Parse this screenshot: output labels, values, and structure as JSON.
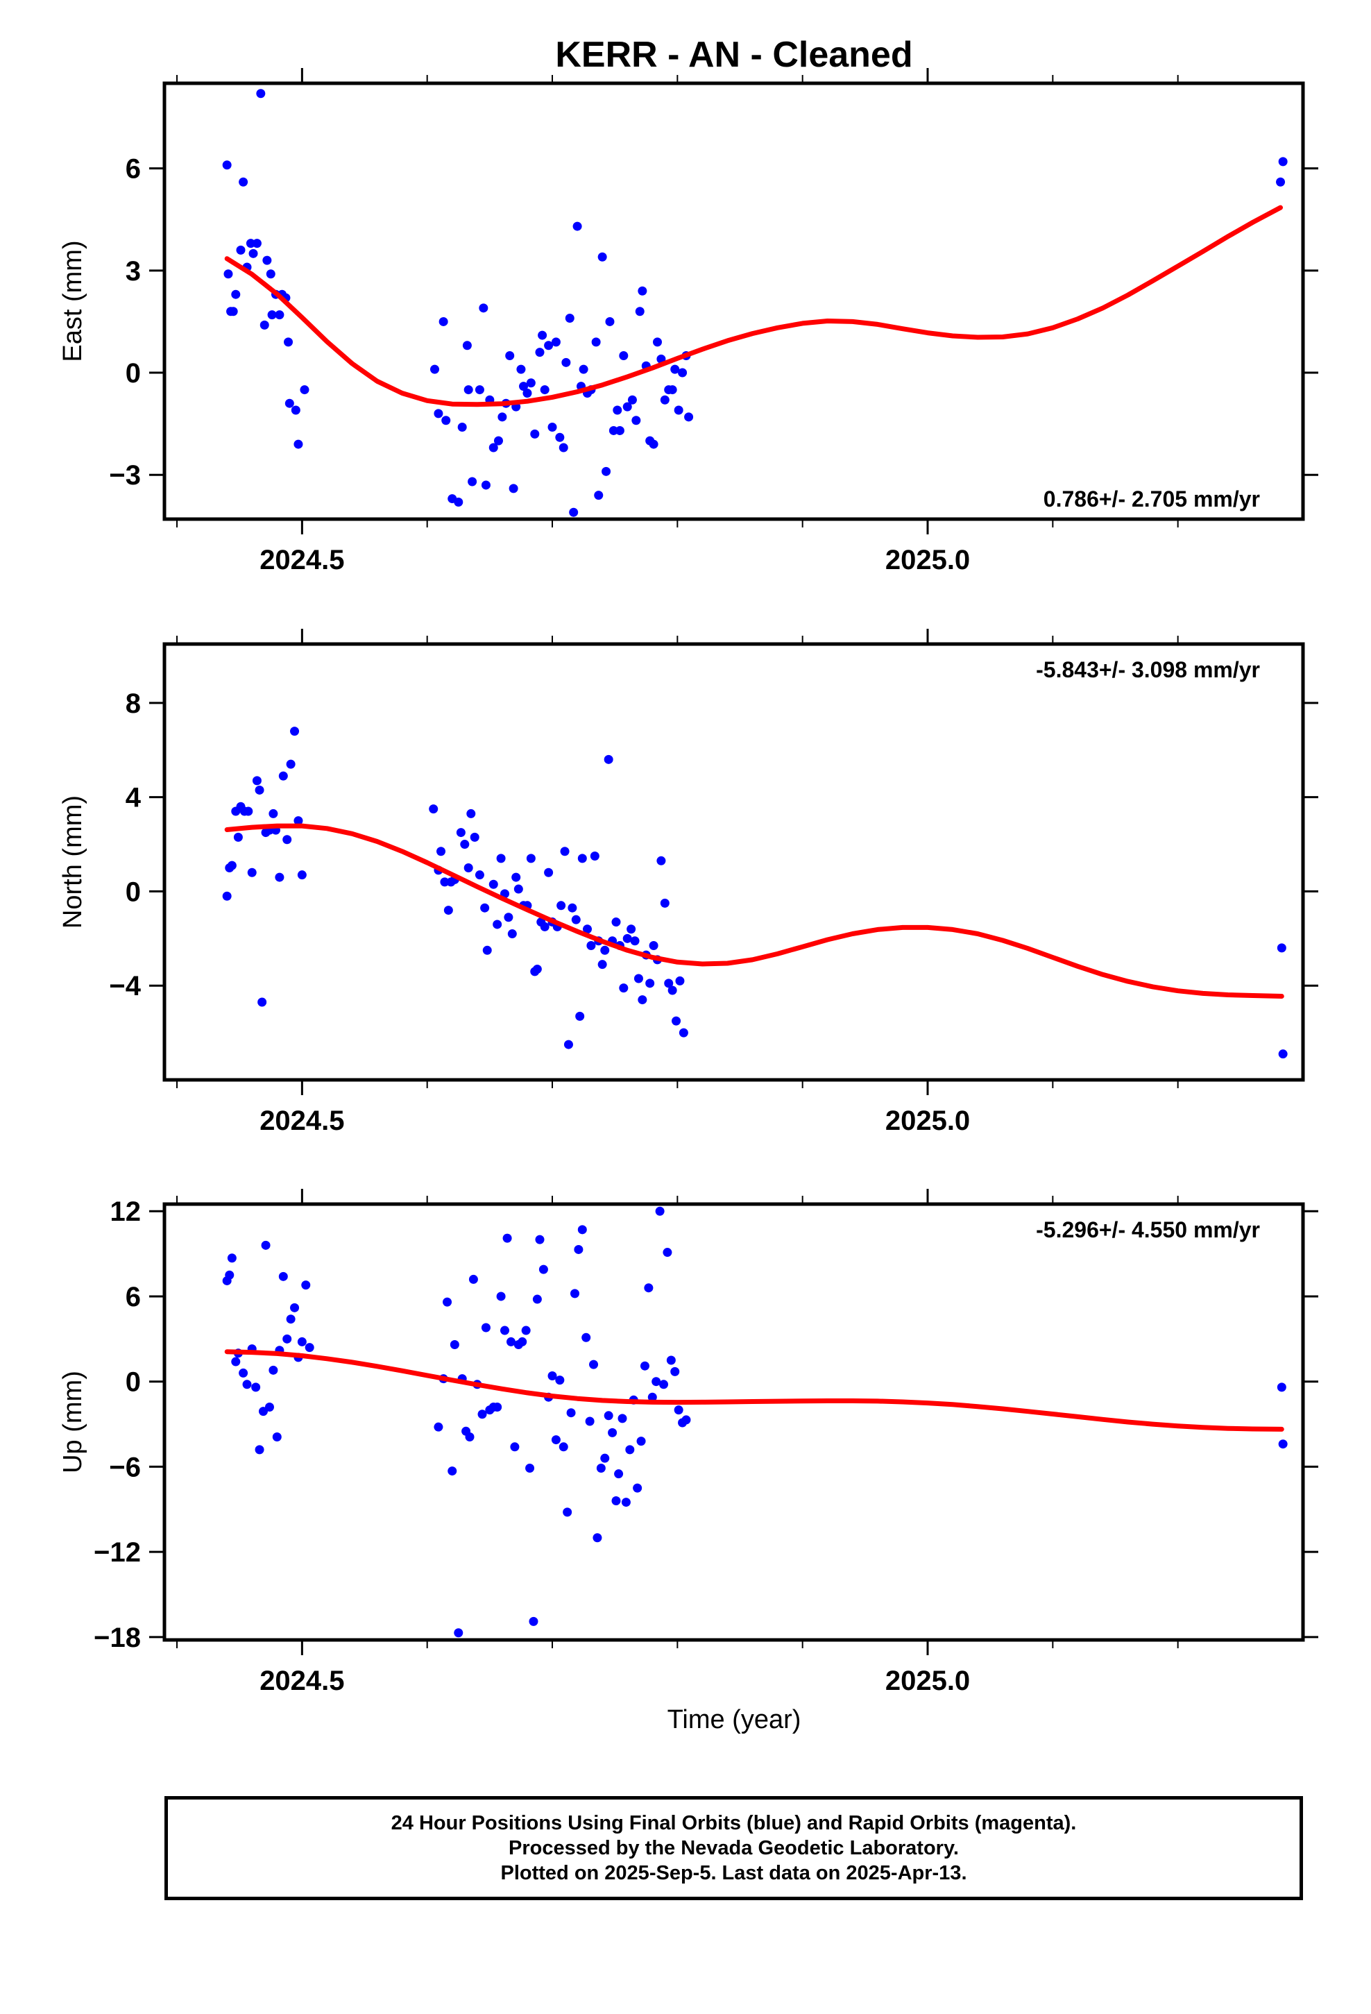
{
  "title": "KERR  - AN - Cleaned",
  "x_axis": {
    "label": "Time (year)"
  },
  "footer": {
    "lines": [
      "24 Hour Positions Using Final Orbits (blue) and Rapid Orbits (magenta).",
      "Processed by the Nevada Geodetic Laboratory.",
      "Plotted on 2025-Sep-5. Last data on 2025-Apr-13."
    ]
  },
  "colors": {
    "points": "#0000ff",
    "fit": "#ff0000",
    "frame": "#000000"
  },
  "chart_data": [
    {
      "type": "scatter",
      "component": "east",
      "ylabel": "East (mm)",
      "rate_label": "0.786+/- 2.705 mm/yr",
      "xlim": [
        2024.39,
        2025.3
      ],
      "ylim": [
        -4.3,
        8.5
      ],
      "xticks": [
        2024.5,
        2025.0
      ],
      "xtick_labels": [
        "2024.5",
        "2025.0"
      ],
      "yticks": [
        -3,
        0,
        3,
        6
      ],
      "ytick_labels": [
        "−3",
        "0",
        "3",
        "6"
      ],
      "points": {
        "x": [
          2024.44,
          2024.441,
          2024.443,
          2024.445,
          2024.447,
          2024.451,
          2024.453,
          2024.456,
          2024.459,
          2024.461,
          2024.464,
          2024.467,
          2024.47,
          2024.472,
          2024.475,
          2024.476,
          2024.479,
          2024.482,
          2024.484,
          2024.487,
          2024.489,
          2024.49,
          2024.495,
          2024.497,
          2024.502,
          2024.606,
          2024.609,
          2024.613,
          2024.615,
          2024.62,
          2024.625,
          2024.628,
          2024.632,
          2024.633,
          2024.636,
          2024.642,
          2024.645,
          2024.647,
          2024.65,
          2024.653,
          2024.657,
          2024.66,
          2024.663,
          2024.666,
          2024.669,
          2024.671,
          2024.675,
          2024.677,
          2024.68,
          2024.683,
          2024.686,
          2024.69,
          2024.692,
          2024.694,
          2024.697,
          2024.7,
          2024.703,
          2024.706,
          2024.709,
          2024.711,
          2024.714,
          2024.717,
          2024.72,
          2024.723,
          2024.725,
          2024.728,
          2024.731,
          2024.735,
          2024.737,
          2024.74,
          2024.743,
          2024.746,
          2024.749,
          2024.752,
          2024.754,
          2024.757,
          2024.76,
          2024.764,
          2024.767,
          2024.77,
          2024.772,
          2024.775,
          2024.778,
          2024.781,
          2024.784,
          2024.787,
          2024.79,
          2024.793,
          2024.796,
          2024.798,
          2024.801,
          2024.804,
          2024.807,
          2024.809,
          2025.282,
          2025.284
        ],
        "y": [
          6.1,
          2.9,
          1.8,
          1.8,
          2.3,
          3.6,
          5.6,
          3.1,
          3.8,
          3.5,
          3.8,
          8.2,
          1.4,
          3.3,
          2.9,
          1.7,
          2.3,
          1.7,
          2.3,
          2.2,
          0.9,
          -0.9,
          -1.1,
          -2.1,
          -0.5,
          0.1,
          -1.2,
          1.5,
          -1.4,
          -3.7,
          -3.8,
          -1.6,
          0.8,
          -0.5,
          -3.2,
          -0.5,
          1.9,
          -3.3,
          -0.8,
          -2.2,
          -2.0,
          -1.3,
          -0.9,
          0.5,
          -3.4,
          -1.0,
          0.1,
          -0.4,
          -0.6,
          -0.3,
          -1.8,
          0.6,
          1.1,
          -0.5,
          0.8,
          -1.6,
          0.9,
          -1.9,
          -2.2,
          0.3,
          1.6,
          -4.1,
          4.3,
          -0.4,
          0.1,
          -0.6,
          -0.5,
          0.9,
          -3.6,
          3.4,
          -2.9,
          1.5,
          -1.7,
          -1.1,
          -1.7,
          0.5,
          -1.0,
          -0.8,
          -1.4,
          1.8,
          2.4,
          0.2,
          -2.0,
          -2.1,
          0.9,
          0.4,
          -0.8,
          -0.5,
          -0.5,
          0.1,
          -1.1,
          0.0,
          0.5,
          -1.3,
          5.6,
          6.2
        ]
      },
      "fit": {
        "x": [
          2024.44,
          2024.46,
          2024.48,
          2024.5,
          2024.52,
          2024.54,
          2024.56,
          2024.58,
          2024.6,
          2024.62,
          2024.64,
          2024.66,
          2024.68,
          2024.7,
          2024.72,
          2024.74,
          2024.76,
          2024.78,
          2024.8,
          2024.82,
          2024.84,
          2024.86,
          2024.88,
          2024.9,
          2024.92,
          2024.94,
          2024.96,
          2024.98,
          2025.0,
          2025.02,
          2025.04,
          2025.06,
          2025.08,
          2025.1,
          2025.12,
          2025.14,
          2025.16,
          2025.18,
          2025.2,
          2025.22,
          2025.24,
          2025.26,
          2025.282
        ],
        "y": [
          3.35,
          2.89,
          2.31,
          1.62,
          0.91,
          0.27,
          -0.25,
          -0.6,
          -0.82,
          -0.92,
          -0.93,
          -0.91,
          -0.84,
          -0.72,
          -0.56,
          -0.36,
          -0.12,
          0.14,
          0.42,
          0.69,
          0.94,
          1.15,
          1.32,
          1.45,
          1.52,
          1.5,
          1.42,
          1.29,
          1.17,
          1.08,
          1.04,
          1.05,
          1.14,
          1.32,
          1.58,
          1.9,
          2.28,
          2.7,
          3.13,
          3.56,
          4.0,
          4.42,
          4.85
        ]
      }
    },
    {
      "type": "scatter",
      "component": "north",
      "ylabel": "North (mm)",
      "rate_label": "-5.843+/- 3.098 mm/yr",
      "xlim": [
        2024.39,
        2025.3
      ],
      "ylim": [
        -8.0,
        10.5
      ],
      "xticks": [
        2024.5,
        2025.0
      ],
      "xtick_labels": [
        "2024.5",
        "2025.0"
      ],
      "yticks": [
        -4,
        0,
        4,
        8
      ],
      "ytick_labels": [
        "−4",
        "0",
        "4",
        "8"
      ],
      "points": {
        "x": [
          2024.44,
          2024.442,
          2024.444,
          2024.447,
          2024.449,
          2024.451,
          2024.454,
          2024.457,
          2024.46,
          2024.464,
          2024.466,
          2024.468,
          2024.471,
          2024.474,
          2024.477,
          2024.479,
          2024.482,
          2024.485,
          2024.488,
          2024.491,
          2024.494,
          2024.497,
          2024.5,
          2024.605,
          2024.609,
          2024.611,
          2024.614,
          2024.617,
          2024.619,
          2024.622,
          2024.627,
          2024.63,
          2024.633,
          2024.635,
          2024.638,
          2024.642,
          2024.646,
          2024.648,
          2024.653,
          2024.656,
          2024.659,
          2024.662,
          2024.665,
          2024.668,
          2024.671,
          2024.673,
          2024.677,
          2024.68,
          2024.683,
          2024.686,
          2024.688,
          2024.691,
          2024.694,
          2024.697,
          2024.7,
          2024.704,
          2024.707,
          2024.71,
          2024.713,
          2024.716,
          2024.719,
          2024.722,
          2024.724,
          2024.728,
          2024.731,
          2024.734,
          2024.737,
          2024.74,
          2024.742,
          2024.745,
          2024.748,
          2024.751,
          2024.754,
          2024.757,
          2024.76,
          2024.763,
          2024.766,
          2024.769,
          2024.772,
          2024.775,
          2024.778,
          2024.781,
          2024.784,
          2024.787,
          2024.79,
          2024.793,
          2024.796,
          2024.799,
          2024.802,
          2024.805,
          2025.283,
          2025.284
        ],
        "y": [
          -0.2,
          1.0,
          1.1,
          3.4,
          2.3,
          3.6,
          3.4,
          3.4,
          0.8,
          4.7,
          4.3,
          -4.7,
          2.5,
          2.6,
          3.3,
          2.6,
          0.6,
          4.9,
          2.2,
          5.4,
          6.8,
          3.0,
          0.7,
          3.5,
          0.9,
          1.7,
          0.4,
          -0.8,
          0.4,
          0.5,
          2.5,
          2.0,
          1.0,
          3.3,
          2.3,
          0.7,
          -0.7,
          -2.5,
          0.3,
          -1.4,
          1.4,
          -0.1,
          -1.1,
          -1.8,
          0.6,
          0.1,
          -0.6,
          -0.6,
          1.4,
          -3.4,
          -3.3,
          -1.3,
          -1.5,
          0.8,
          -1.3,
          -1.5,
          -0.6,
          1.7,
          -6.5,
          -0.7,
          -1.2,
          -5.3,
          1.4,
          -1.6,
          -2.3,
          1.5,
          -2.1,
          -3.1,
          -2.5,
          5.6,
          -2.1,
          -1.3,
          -2.3,
          -4.1,
          -2.0,
          -1.6,
          -2.1,
          -3.7,
          -4.6,
          -2.7,
          -3.9,
          -2.3,
          -2.9,
          1.3,
          -0.5,
          -3.9,
          -4.2,
          -5.5,
          -3.8,
          -6.0,
          -2.4,
          -6.9
        ]
      },
      "fit": {
        "x": [
          2024.44,
          2024.46,
          2024.48,
          2024.5,
          2024.52,
          2024.54,
          2024.56,
          2024.58,
          2024.6,
          2024.62,
          2024.64,
          2024.66,
          2024.68,
          2024.7,
          2024.72,
          2024.74,
          2024.76,
          2024.78,
          2024.8,
          2024.82,
          2024.84,
          2024.86,
          2024.88,
          2024.9,
          2024.92,
          2024.94,
          2024.96,
          2024.98,
          2025.0,
          2025.02,
          2025.04,
          2025.06,
          2025.08,
          2025.1,
          2025.12,
          2025.14,
          2025.16,
          2025.18,
          2025.2,
          2025.22,
          2025.24,
          2025.26,
          2025.283
        ],
        "y": [
          2.62,
          2.72,
          2.78,
          2.78,
          2.67,
          2.45,
          2.12,
          1.7,
          1.22,
          0.71,
          0.2,
          -0.3,
          -0.78,
          -1.25,
          -1.7,
          -2.12,
          -2.5,
          -2.8,
          -3.0,
          -3.08,
          -3.05,
          -2.9,
          -2.65,
          -2.35,
          -2.05,
          -1.8,
          -1.62,
          -1.53,
          -1.53,
          -1.62,
          -1.8,
          -2.08,
          -2.42,
          -2.8,
          -3.18,
          -3.53,
          -3.82,
          -4.05,
          -4.22,
          -4.33,
          -4.39,
          -4.42,
          -4.45
        ]
      }
    },
    {
      "type": "scatter",
      "component": "up",
      "ylabel": "Up (mm)",
      "rate_label": "-5.296+/- 4.550 mm/yr",
      "xlim": [
        2024.39,
        2025.3
      ],
      "ylim": [
        -18.2,
        12.5
      ],
      "xticks": [
        2024.5,
        2025.0
      ],
      "xtick_labels": [
        "2024.5",
        "2025.0"
      ],
      "yticks": [
        -18,
        -12,
        -6,
        0,
        6,
        12
      ],
      "ytick_labels": [
        "−18",
        "−12",
        "−6",
        "0",
        "6",
        "12"
      ],
      "points": {
        "x": [
          2024.44,
          2024.442,
          2024.444,
          2024.447,
          2024.449,
          2024.453,
          2024.456,
          2024.46,
          2024.463,
          2024.466,
          2024.469,
          2024.471,
          2024.474,
          2024.477,
          2024.48,
          2024.482,
          2024.485,
          2024.488,
          2024.491,
          2024.494,
          2024.497,
          2024.5,
          2024.503,
          2024.506,
          2024.609,
          2024.613,
          2024.616,
          2024.62,
          2024.622,
          2024.625,
          2024.628,
          2024.631,
          2024.634,
          2024.637,
          2024.64,
          2024.644,
          2024.647,
          2024.65,
          2024.653,
          2024.656,
          2024.659,
          2024.662,
          2024.664,
          2024.667,
          2024.67,
          2024.673,
          2024.676,
          2024.679,
          2024.682,
          2024.685,
          2024.688,
          2024.69,
          2024.693,
          2024.697,
          2024.7,
          2024.703,
          2024.706,
          2024.709,
          2024.712,
          2024.715,
          2024.718,
          2024.721,
          2024.724,
          2024.727,
          2024.73,
          2024.733,
          2024.736,
          2024.739,
          2024.742,
          2024.745,
          2024.748,
          2024.751,
          2024.753,
          2024.756,
          2024.759,
          2024.762,
          2024.765,
          2024.768,
          2024.771,
          2024.774,
          2024.777,
          2024.78,
          2024.783,
          2024.786,
          2024.789,
          2024.792,
          2024.795,
          2024.798,
          2024.801,
          2024.804,
          2024.807,
          2025.283,
          2025.284
        ],
        "y": [
          7.1,
          7.5,
          8.7,
          1.4,
          2.0,
          0.6,
          -0.2,
          2.3,
          -0.4,
          -4.8,
          -2.1,
          9.6,
          -1.8,
          0.8,
          -3.9,
          2.2,
          7.4,
          3.0,
          4.4,
          5.2,
          1.7,
          2.8,
          6.8,
          2.4,
          -3.2,
          0.2,
          5.6,
          -6.3,
          2.6,
          -17.7,
          0.2,
          -3.5,
          -3.9,
          7.2,
          -0.2,
          -2.3,
          3.8,
          -2.0,
          -1.8,
          -1.8,
          6.0,
          3.6,
          10.1,
          2.8,
          -4.6,
          2.6,
          2.8,
          3.6,
          -6.1,
          -16.9,
          5.8,
          10.0,
          7.9,
          -1.1,
          0.4,
          -4.1,
          0.1,
          -4.6,
          -9.2,
          -2.2,
          6.2,
          9.3,
          10.7,
          3.1,
          -2.8,
          1.2,
          -11.0,
          -6.1,
          -5.4,
          -2.4,
          -3.6,
          -8.4,
          -6.5,
          -2.6,
          -8.5,
          -4.8,
          -1.3,
          -7.5,
          -4.2,
          1.1,
          6.6,
          -1.1,
          0.0,
          12.0,
          -0.2,
          9.1,
          1.5,
          0.7,
          -2.0,
          -2.9,
          -2.7,
          -0.4,
          -4.4
        ]
      },
      "fit": {
        "x": [
          2024.44,
          2024.46,
          2024.48,
          2024.5,
          2024.52,
          2024.54,
          2024.56,
          2024.58,
          2024.6,
          2024.62,
          2024.64,
          2024.66,
          2024.68,
          2024.7,
          2024.72,
          2024.74,
          2024.76,
          2024.78,
          2024.8,
          2024.82,
          2024.84,
          2024.86,
          2024.88,
          2024.9,
          2024.92,
          2024.94,
          2024.96,
          2024.98,
          2025.0,
          2025.02,
          2025.04,
          2025.06,
          2025.08,
          2025.1,
          2025.12,
          2025.14,
          2025.16,
          2025.18,
          2025.2,
          2025.22,
          2025.24,
          2025.26,
          2025.283
        ],
        "y": [
          2.1,
          2.06,
          1.97,
          1.82,
          1.61,
          1.36,
          1.07,
          0.76,
          0.43,
          0.1,
          -0.22,
          -0.52,
          -0.79,
          -1.02,
          -1.2,
          -1.33,
          -1.41,
          -1.45,
          -1.46,
          -1.45,
          -1.43,
          -1.41,
          -1.39,
          -1.37,
          -1.36,
          -1.36,
          -1.38,
          -1.43,
          -1.51,
          -1.62,
          -1.76,
          -1.92,
          -2.1,
          -2.29,
          -2.48,
          -2.67,
          -2.85,
          -3.0,
          -3.13,
          -3.23,
          -3.3,
          -3.34,
          -3.36
        ]
      }
    }
  ]
}
